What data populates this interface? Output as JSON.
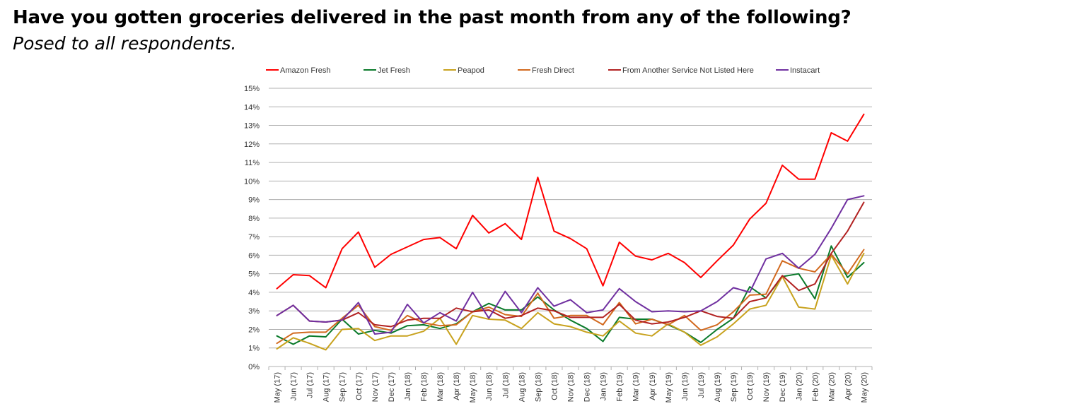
{
  "title": "Have you gotten groceries delivered in the past month from any of the following?",
  "subtitle": "Posed to all respondents.",
  "chart_data": {
    "type": "line",
    "ylim": [
      0,
      15
    ],
    "yticks": [
      "0%",
      "1%",
      "2%",
      "3%",
      "4%",
      "5%",
      "6%",
      "7%",
      "8%",
      "9%",
      "10%",
      "11%",
      "12%",
      "13%",
      "14%",
      "15%"
    ],
    "grid": true,
    "legend": "top",
    "categories": [
      "May (17)",
      "Jun (17)",
      "Jul (17)",
      "Aug (17)",
      "Sep (17)",
      "Oct (17)",
      "Nov (17)",
      "Dec (17)",
      "Jan (18)",
      "Feb (18)",
      "Mar (18)",
      "Apr (18)",
      "May (18)",
      "Jun (18)",
      "Jul (18)",
      "Aug (18)",
      "Sep (18)",
      "Oct (18)",
      "Nov (18)",
      "Dec (18)",
      "Jan (19)",
      "Feb (19)",
      "Mar (19)",
      "Apr (19)",
      "May (19)",
      "Jun (19)",
      "Jul (19)",
      "Aug (19)",
      "Sep (19)",
      "Oct (19)",
      "Nov (19)",
      "Dec (19)",
      "Jan (20)",
      "Feb (20)",
      "Mar (20)",
      "Apr (20)",
      "May (20)"
    ],
    "series": [
      {
        "name": "Amazon Fresh",
        "color": "#ff0000",
        "values": [
          4.2,
          4.95,
          4.9,
          4.25,
          6.35,
          7.25,
          5.35,
          6.05,
          6.45,
          6.85,
          6.95,
          6.35,
          8.15,
          7.2,
          7.7,
          6.85,
          10.2,
          7.3,
          6.9,
          6.35,
          4.35,
          6.7,
          5.95,
          5.75,
          6.1,
          5.6,
          4.8,
          5.7,
          6.55,
          7.95,
          8.8,
          10.85,
          10.1,
          10.1,
          12.6,
          12.15,
          13.6
        ]
      },
      {
        "name": "Jet Fresh",
        "color": "#0a7a2a",
        "values": [
          1.65,
          1.2,
          1.65,
          1.6,
          2.55,
          1.75,
          1.95,
          1.8,
          2.2,
          2.25,
          2.05,
          2.3,
          2.95,
          3.4,
          3.05,
          3.05,
          3.75,
          3.05,
          2.5,
          2.05,
          1.35,
          2.65,
          2.55,
          2.55,
          2.25,
          1.85,
          1.3,
          2.0,
          2.6,
          4.3,
          3.7,
          4.85,
          5.0,
          3.65,
          6.5,
          4.8,
          5.6
        ]
      },
      {
        "name": "Peapod",
        "color": "#c8a21e",
        "values": [
          0.95,
          1.55,
          1.25,
          0.9,
          2.0,
          2.05,
          1.4,
          1.65,
          1.65,
          1.9,
          2.6,
          1.2,
          2.75,
          2.55,
          2.5,
          2.05,
          2.9,
          2.3,
          2.15,
          1.85,
          1.65,
          2.45,
          1.8,
          1.65,
          2.3,
          1.85,
          1.15,
          1.6,
          2.3,
          3.1,
          3.3,
          4.85,
          3.2,
          3.1,
          6.0,
          4.45,
          6.1
        ]
      },
      {
        "name": "Fresh Direct",
        "color": "#d2691e",
        "values": [
          1.25,
          1.8,
          1.85,
          1.85,
          2.6,
          3.3,
          2.15,
          1.95,
          2.75,
          2.35,
          2.2,
          2.25,
          2.95,
          3.2,
          2.8,
          2.7,
          3.95,
          2.6,
          2.75,
          2.75,
          2.25,
          3.45,
          2.3,
          2.55,
          2.25,
          2.75,
          1.95,
          2.25,
          2.95,
          3.85,
          3.9,
          5.7,
          5.3,
          5.1,
          6.05,
          5.0,
          6.3
        ]
      },
      {
        "name": "From Another Service Not Listed Here",
        "color": "#b22222",
        "values": [
          2.75,
          3.3,
          2.45,
          2.4,
          2.5,
          2.9,
          2.25,
          2.15,
          2.5,
          2.6,
          2.6,
          3.15,
          2.95,
          3.05,
          2.6,
          2.75,
          3.15,
          3.0,
          2.65,
          2.65,
          2.65,
          3.35,
          2.5,
          2.3,
          2.4,
          2.65,
          3.0,
          2.7,
          2.6,
          3.5,
          3.7,
          4.9,
          4.1,
          4.45,
          6.1,
          7.3,
          8.85
        ]
      },
      {
        "name": "Instacart",
        "color": "#7030a0",
        "values": [
          2.75,
          3.3,
          2.45,
          2.4,
          2.5,
          3.45,
          1.75,
          1.85,
          3.35,
          2.35,
          2.9,
          2.45,
          4.0,
          2.6,
          4.05,
          2.9,
          4.25,
          3.25,
          3.6,
          2.9,
          3.05,
          4.2,
          3.5,
          2.95,
          3.0,
          2.95,
          3.0,
          3.5,
          4.25,
          4.0,
          5.8,
          6.1,
          5.3,
          6.05,
          7.45,
          9.0,
          9.2
        ]
      }
    ]
  }
}
